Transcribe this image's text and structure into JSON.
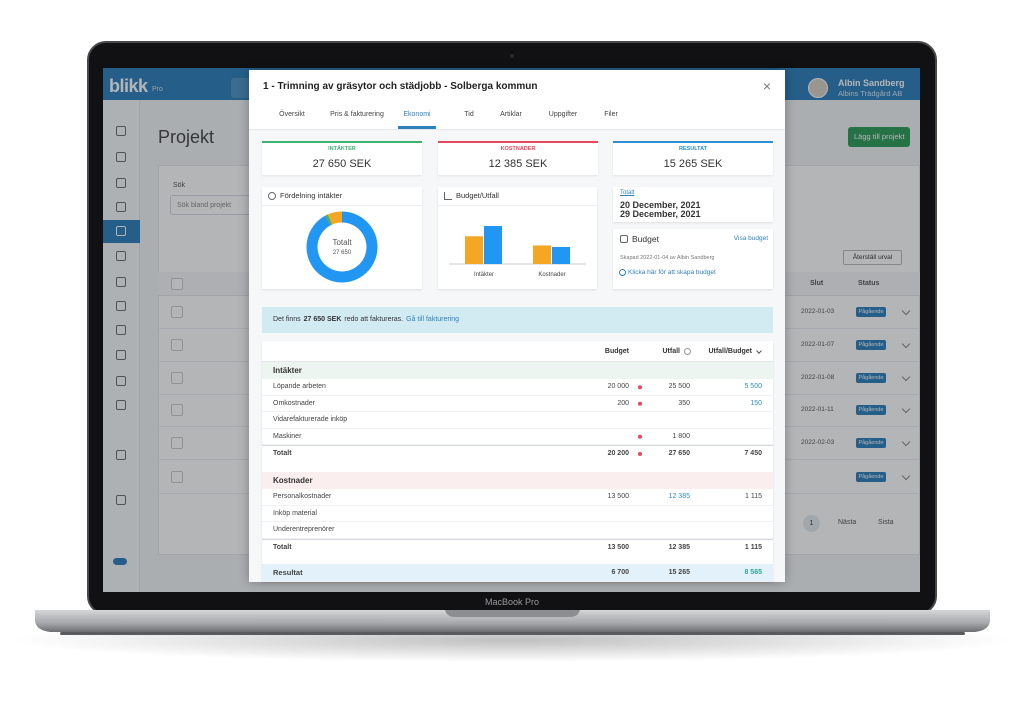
{
  "device_label": "MacBook Pro",
  "app_header": {
    "logo": "blikk",
    "logo_badge": "Pro",
    "user_name": "Albin Sandberg",
    "user_company": "Albins Trädgård AB"
  },
  "projects_page": {
    "title": "Projekt",
    "add_button": "Lägg till projekt",
    "search_label": "Sök",
    "search_placeholder": "Sök bland projekt",
    "reset_button": "Återställ urval",
    "columns": [
      "Slut",
      "Status"
    ],
    "rows": [
      {
        "end": "2022-01-03",
        "status": "Pågående"
      },
      {
        "end": "2022-01-07",
        "status": "Pågående"
      },
      {
        "end": "2022-01-08",
        "status": "Pågående"
      },
      {
        "end": "2022-01-11",
        "status": "Pågående"
      },
      {
        "end": "2022-02-03",
        "status": "Pågående"
      },
      {
        "end": null,
        "status": "Pågående"
      }
    ],
    "pagination": {
      "current": "1",
      "next": "Nästa",
      "last": "Sista"
    }
  },
  "modal": {
    "title": "1 - Trimning av gräsytor och städjobb - Solberga kommun",
    "close_icon": "×",
    "tabs": [
      "Översikt",
      "Pris & fakturering",
      "Ekonomi",
      "Tid",
      "Artiklar",
      "Uppgifter",
      "Filer"
    ],
    "active_tab": 2,
    "kpis": [
      {
        "label": "INTÄKTER",
        "value": "27 650 SEK",
        "color": "#3cb371"
      },
      {
        "label": "KOSTNADER",
        "value": "12 385 SEK",
        "color": "#e5485d"
      },
      {
        "label": "RESULTAT",
        "value": "15 265 SEK",
        "color": "#2d8fd5"
      }
    ],
    "donut": {
      "title": "Fördelning intäkter",
      "center_label": "Totalt",
      "center_value": "27 650"
    },
    "bar_chart": {
      "title": "Budget/Utfall",
      "categories": [
        "Intäkter",
        "Kostnader"
      ],
      "colors": {
        "budget": "#f5a623",
        "utfall": "#2196f3"
      }
    },
    "period": {
      "link": "Totalt",
      "start": "20 December, 2021",
      "end": "29 December, 2021"
    },
    "budget": {
      "title": "Budget",
      "link": "Visa budget",
      "created": "Skapad 2022-01-04 av Albin Sandberg",
      "create_link": "Klicka här för att skapa budget"
    },
    "banner": {
      "text_before": "Det finns",
      "amount": "27 650 SEK",
      "text_after": "redo att faktureras.",
      "link": "Gå till fakturering"
    },
    "table": {
      "columns": [
        "Budget",
        "Utfall",
        "Utfall/Budget"
      ],
      "sections": [
        {
          "title": "Intäkter",
          "color": "#edf5f0",
          "highlight": "diff",
          "rows": [
            {
              "name": "Löpande arbeten",
              "budget": {
                "value": 20000,
                "label": "20 000"
              },
              "utfall": {
                "value": 25500,
                "label": "25 500"
              },
              "diff": {
                "value": 5500,
                "label": "5 500"
              },
              "flag": true,
              "color": "#2196f3"
            },
            {
              "name": "Omkostnader",
              "budget": {
                "value": 200,
                "label": "200"
              },
              "utfall": {
                "value": 350,
                "label": "350"
              },
              "diff": {
                "value": 150,
                "label": "150"
              },
              "flag": true,
              "color": "#4caf50"
            },
            {
              "name": "Vidarefakturerade inköp"
            },
            {
              "name": "Maskiner",
              "utfall": {
                "value": 1800,
                "label": "1 800"
              },
              "flag": true,
              "color": "#f5a623"
            }
          ],
          "total": {
            "name": "Totalt",
            "budget": {
              "value": 20200,
              "label": "20 200"
            },
            "utfall": {
              "value": 27650,
              "label": "27 650"
            },
            "diff": {
              "value": 7450,
              "label": "7 450"
            },
            "flag": true
          }
        },
        {
          "title": "Kostnader",
          "color": "#fbeeee",
          "highlight": "utfall",
          "rows": [
            {
              "name": "Personalkostnader",
              "budget": {
                "value": 13500,
                "label": "13 500"
              },
              "utfall": {
                "value": 12385,
                "label": "12 385"
              },
              "diff": {
                "value": 1115,
                "label": "1 115"
              }
            },
            {
              "name": "Inköp material"
            },
            {
              "name": "Underentreprenörer"
            }
          ],
          "total": {
            "name": "Totalt",
            "budget": {
              "value": 13500,
              "label": "13 500"
            },
            "utfall": {
              "value": 12385,
              "label": "12 385"
            },
            "diff": {
              "value": 1115,
              "label": "1 115"
            }
          }
        }
      ],
      "result": {
        "name": "Resultat",
        "budget": {
          "value": 6700,
          "label": "6 700"
        },
        "utfall": {
          "value": 15265,
          "label": "15 265"
        },
        "diff": {
          "value": 8565,
          "label": "8 565"
        }
      }
    }
  }
}
